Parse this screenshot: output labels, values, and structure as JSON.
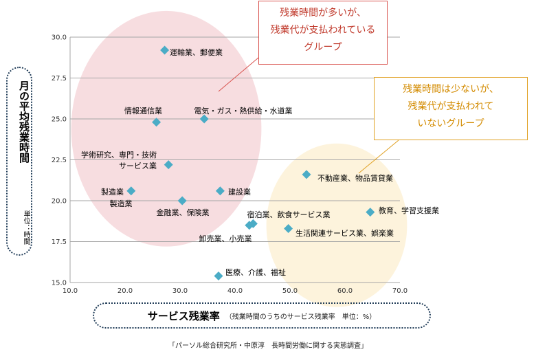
{
  "chart_data": {
    "type": "scatter",
    "xlabel": "サービス残業率",
    "xlabel_note": "（残業時間のうちのサービス残業率　単位：%）",
    "ylabel": "月の平均残業時間",
    "ylabel_unit": "単位：時間",
    "xlim": [
      10.0,
      70.0
    ],
    "ylim": [
      15.0,
      30.0
    ],
    "x_ticks": [
      "10.0",
      "20.0",
      "30.0",
      "40.0",
      "50.0",
      "60.0",
      "70.0"
    ],
    "y_ticks": [
      "15.0",
      "17.5",
      "20.0",
      "22.5",
      "25.0",
      "27.5",
      "30.0"
    ],
    "grid": "horizontal",
    "marker_color": "#4bacc6",
    "points": [
      {
        "label": "運輸業、郵便業",
        "x": 27.2,
        "y": 29.2
      },
      {
        "label": "情報通信業",
        "x": 25.7,
        "y": 24.8
      },
      {
        "label": "電気・ガス・熱供給・水道業",
        "x": 34.4,
        "y": 25.0
      },
      {
        "label": "学術研究、専門・技術サービス業",
        "x": 27.9,
        "y": 22.2
      },
      {
        "label": "製造業",
        "x": 21.1,
        "y": 20.6
      },
      {
        "label": "金融業、保険業",
        "x": 30.4,
        "y": 20.0
      },
      {
        "label": "建設業",
        "x": 37.3,
        "y": 20.6
      },
      {
        "label": "宿泊業、飲食サービス業",
        "x": 43.3,
        "y": 18.6
      },
      {
        "label": "卸売業、小売業",
        "x": 42.6,
        "y": 18.5
      },
      {
        "label": "生活関連サービス業、娯楽業",
        "x": 49.7,
        "y": 18.3
      },
      {
        "label": "不動産業、物品賃貸業",
        "x": 53.0,
        "y": 21.6
      },
      {
        "label": "教育、学習支援業",
        "x": 64.6,
        "y": 19.3
      },
      {
        "label": "医療、介護、福祉",
        "x": 37.0,
        "y": 15.4
      }
    ],
    "groups": [
      {
        "color": "#f6d7da",
        "cx": 27.5,
        "cy": 24.4,
        "rx": 17.3,
        "ry": 7.2
      },
      {
        "color": "#fdf1d6",
        "cx": 58.5,
        "cy": 18.5,
        "rx": 12.8,
        "ry": 5.0
      }
    ]
  },
  "labels": {
    "運輸業、郵便業": "運輸業、郵便業",
    "情報通信業": "情報通信業",
    "電気": "電気・ガス・熱供給・水道業",
    "学術1": "学術研究、専門・技術",
    "学術2": "サービス業",
    "製造業a": "製造業",
    "製造業b": "製造業",
    "金融": "金融業、保険業",
    "建設": "建設業",
    "宿泊": "宿泊業、飲食サービス業",
    "卸売": "卸売業、小売業",
    "生活": "生活関連サービス業、娯楽業",
    "不動産": "不動産業、物品賃貸業",
    "教育": "教育、学習支援業",
    "医療": "医療、介護、福祉"
  },
  "callouts": {
    "red": [
      "残業時間が多いが、",
      "残業代が支払われている",
      "グループ"
    ],
    "yellow": [
      "残業時間は少ないが、",
      "残業代が支払われて",
      "いないグループ"
    ]
  },
  "source": "「パーソル総合研究所・中原淳　長時間労働に関する実態調査」"
}
